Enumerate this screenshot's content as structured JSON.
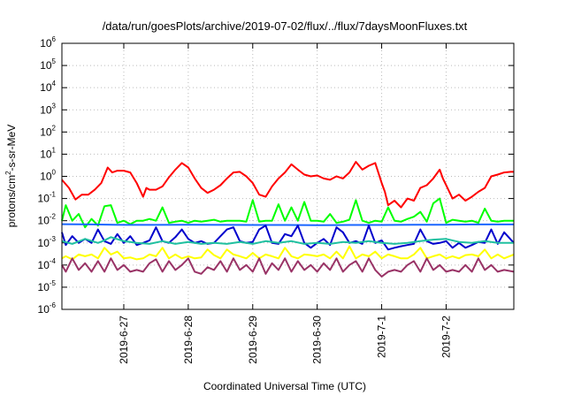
{
  "chart_data": {
    "type": "line",
    "title": "/data/run/goesPlots/archive/2019-07-02/flux/../flux/7daysMoonFluxes.txt",
    "xlabel": "Coordinated Universal Time (UTC)",
    "ylabel": "protons/cm²-s-sr-MeV",
    "ylabel_parts": {
      "main": "protons/cm",
      "sup": "2",
      "rest": "-s-sr-MeV"
    },
    "yscale": "log",
    "ylim": [
      -6,
      6
    ],
    "y_ticks": [
      {
        "base": "10",
        "exp": "-6"
      },
      {
        "base": "10",
        "exp": "-5"
      },
      {
        "base": "10",
        "exp": "-4"
      },
      {
        "base": "10",
        "exp": "-3"
      },
      {
        "base": "10",
        "exp": "-2"
      },
      {
        "base": "10",
        "exp": "-1"
      },
      {
        "base": "10",
        "exp": "0"
      },
      {
        "base": "10",
        "exp": "1"
      },
      {
        "base": "10",
        "exp": "2"
      },
      {
        "base": "10",
        "exp": "3"
      },
      {
        "base": "10",
        "exp": "4"
      },
      {
        "base": "10",
        "exp": "5"
      },
      {
        "base": "10",
        "exp": "6"
      }
    ],
    "x_ticks": [
      "2019-6-27",
      "2019-6-28",
      "2019-6-29",
      "2019-6-30",
      "2019-7-1",
      "2019-7-2"
    ],
    "x_tick_days": [
      1,
      2,
      3,
      4,
      5,
      6
    ],
    "xlim_days": [
      0.04,
      7.05
    ],
    "grid": true,
    "legend": "none",
    "series": [
      {
        "color": "#ff0000",
        "x": [
          0.04,
          0.15,
          0.25,
          0.35,
          0.45,
          0.55,
          0.65,
          0.75,
          0.82,
          0.9,
          1.0,
          1.1,
          1.2,
          1.3,
          1.35,
          1.4,
          1.5,
          1.6,
          1.7,
          1.8,
          1.9,
          2.0,
          2.1,
          2.2,
          2.3,
          2.4,
          2.5,
          2.6,
          2.7,
          2.8,
          2.9,
          3.0,
          3.1,
          3.2,
          3.3,
          3.4,
          3.5,
          3.6,
          3.7,
          3.8,
          3.9,
          4.0,
          4.1,
          4.2,
          4.3,
          4.4,
          4.5,
          4.6,
          4.7,
          4.8,
          4.9,
          5.0,
          5.05,
          5.1,
          5.2,
          5.3,
          5.4,
          5.5,
          5.6,
          5.7,
          5.8,
          5.9,
          5.95,
          6.0,
          6.1,
          6.2,
          6.3,
          6.4,
          6.5,
          6.6,
          6.7,
          6.8,
          6.9,
          7.0,
          7.05
        ],
        "y": [
          0.7,
          0.3,
          0.09,
          0.15,
          0.15,
          0.25,
          0.5,
          2.5,
          1.5,
          1.8,
          1.8,
          1.5,
          0.5,
          0.12,
          0.3,
          0.25,
          0.25,
          0.35,
          0.9,
          2.0,
          4.0,
          2.5,
          0.8,
          0.3,
          0.18,
          0.25,
          0.4,
          0.8,
          1.5,
          1.6,
          1.0,
          0.5,
          0.15,
          0.12,
          0.35,
          0.8,
          1.5,
          3.5,
          2.0,
          1.2,
          1.0,
          1.1,
          0.8,
          0.7,
          1.0,
          0.8,
          1.5,
          4.5,
          2.0,
          3.0,
          4.0,
          0.5,
          0.2,
          0.05,
          0.08,
          0.04,
          0.1,
          0.08,
          0.3,
          0.4,
          0.8,
          2.0,
          0.8,
          0.4,
          0.1,
          0.15,
          0.08,
          0.12,
          0.2,
          0.3,
          1.0,
          1.2,
          1.5,
          1.6,
          1.6
        ]
      },
      {
        "color": "#00ff00",
        "x": [
          0.04,
          0.1,
          0.2,
          0.3,
          0.4,
          0.5,
          0.6,
          0.7,
          0.8,
          0.9,
          1.0,
          1.1,
          1.2,
          1.3,
          1.4,
          1.5,
          1.6,
          1.7,
          1.8,
          1.9,
          2.0,
          2.1,
          2.2,
          2.3,
          2.4,
          2.5,
          2.6,
          2.7,
          2.8,
          2.9,
          3.0,
          3.1,
          3.2,
          3.3,
          3.4,
          3.5,
          3.6,
          3.7,
          3.8,
          3.9,
          4.0,
          4.1,
          4.2,
          4.3,
          4.4,
          4.5,
          4.6,
          4.7,
          4.8,
          4.9,
          5.0,
          5.1,
          5.2,
          5.3,
          5.4,
          5.5,
          5.6,
          5.7,
          5.8,
          5.9,
          6.0,
          6.1,
          6.2,
          6.3,
          6.4,
          6.5,
          6.6,
          6.7,
          6.8,
          6.9,
          7.05
        ],
        "y": [
          0.01,
          0.05,
          0.01,
          0.02,
          0.005,
          0.012,
          0.006,
          0.045,
          0.05,
          0.008,
          0.01,
          0.007,
          0.01,
          0.01,
          0.012,
          0.01,
          0.04,
          0.008,
          0.009,
          0.01,
          0.008,
          0.01,
          0.009,
          0.01,
          0.011,
          0.009,
          0.01,
          0.01,
          0.01,
          0.009,
          0.085,
          0.009,
          0.01,
          0.01,
          0.055,
          0.01,
          0.04,
          0.01,
          0.07,
          0.01,
          0.01,
          0.009,
          0.02,
          0.008,
          0.009,
          0.011,
          0.085,
          0.01,
          0.008,
          0.01,
          0.009,
          0.04,
          0.01,
          0.009,
          0.012,
          0.015,
          0.025,
          0.009,
          0.06,
          0.1,
          0.008,
          0.011,
          0.01,
          0.009,
          0.01,
          0.008,
          0.035,
          0.01,
          0.009,
          0.01,
          0.01
        ]
      },
      {
        "color": "#1a66ff",
        "x": [
          0.04,
          0.5,
          1.0,
          1.5,
          2.0,
          2.5,
          3.0,
          3.5,
          4.0,
          4.5,
          5.0,
          5.5,
          6.0,
          6.5,
          7.05
        ],
        "y": [
          0.007,
          0.0068,
          0.0065,
          0.0065,
          0.0066,
          0.0065,
          0.0064,
          0.0064,
          0.0063,
          0.0064,
          0.0064,
          0.0066,
          0.0066,
          0.0068,
          0.0068
        ]
      },
      {
        "color": "#0000cc",
        "x": [
          0.04,
          0.1,
          0.2,
          0.3,
          0.4,
          0.5,
          0.6,
          0.7,
          0.8,
          0.9,
          1.0,
          1.1,
          1.2,
          1.3,
          1.4,
          1.5,
          1.6,
          1.7,
          1.8,
          1.9,
          2.0,
          2.1,
          2.2,
          2.3,
          2.4,
          2.5,
          2.6,
          2.7,
          2.8,
          2.9,
          3.0,
          3.1,
          3.2,
          3.3,
          3.4,
          3.5,
          3.6,
          3.7,
          3.8,
          3.9,
          4.0,
          4.1,
          4.2,
          4.3,
          4.4,
          4.5,
          4.6,
          4.7,
          4.8,
          4.9,
          5.0,
          5.1,
          5.2,
          5.3,
          5.4,
          5.5,
          5.6,
          5.7,
          5.8,
          5.9,
          6.0,
          6.1,
          6.2,
          6.3,
          6.4,
          6.5,
          6.6,
          6.7,
          6.8,
          6.9,
          7.05
        ],
        "y": [
          0.003,
          0.0008,
          0.002,
          0.001,
          0.0015,
          0.001,
          0.004,
          0.0012,
          0.0009,
          0.0025,
          0.001,
          0.002,
          0.0008,
          0.001,
          0.0013,
          0.005,
          0.0012,
          0.001,
          0.0018,
          0.004,
          0.0015,
          0.001,
          0.0012,
          0.0009,
          0.001,
          0.002,
          0.004,
          0.005,
          0.0012,
          0.001,
          0.0011,
          0.004,
          0.006,
          0.001,
          0.0009,
          0.0025,
          0.002,
          0.006,
          0.001,
          0.0006,
          0.001,
          0.0015,
          0.0008,
          0.005,
          0.003,
          0.001,
          0.0012,
          0.0009,
          0.006,
          0.001,
          0.0013,
          0.0005,
          0.0006,
          0.0007,
          0.0008,
          0.0009,
          0.004,
          0.0012,
          0.0009,
          0.001,
          0.0012,
          0.0006,
          0.001,
          0.0006,
          0.0008,
          0.0011,
          0.001,
          0.004,
          0.0009,
          0.003,
          0.001
        ]
      },
      {
        "color": "#20c0a0",
        "x": [
          0.04,
          0.2,
          0.4,
          0.6,
          0.7,
          0.8,
          1.0,
          1.2,
          1.4,
          1.6,
          1.8,
          2.0,
          2.2,
          2.4,
          2.6,
          2.8,
          3.0,
          3.2,
          3.4,
          3.6,
          3.8,
          4.0,
          4.2,
          4.4,
          4.6,
          4.8,
          5.0,
          5.2,
          5.4,
          5.6,
          5.8,
          6.0,
          6.2,
          6.4,
          6.6,
          6.8,
          7.05
        ],
        "y": [
          0.0012,
          0.0009,
          0.0015,
          0.001,
          0.0013,
          0.0018,
          0.0012,
          0.001,
          0.0009,
          0.0012,
          0.0009,
          0.0011,
          0.0009,
          0.001,
          0.0009,
          0.0011,
          0.0009,
          0.0012,
          0.001,
          0.0012,
          0.0009,
          0.001,
          0.0009,
          0.0011,
          0.001,
          0.0012,
          0.001,
          0.0009,
          0.001,
          0.0012,
          0.0014,
          0.0015,
          0.0011,
          0.001,
          0.0012,
          0.001,
          0.001
        ]
      },
      {
        "color": "#ffff00",
        "x": [
          0.04,
          0.1,
          0.2,
          0.3,
          0.4,
          0.5,
          0.6,
          0.7,
          0.8,
          0.9,
          1.0,
          1.1,
          1.2,
          1.3,
          1.4,
          1.5,
          1.6,
          1.7,
          1.8,
          1.9,
          2.0,
          2.1,
          2.2,
          2.3,
          2.4,
          2.5,
          2.6,
          2.7,
          2.8,
          2.9,
          3.0,
          3.1,
          3.2,
          3.3,
          3.4,
          3.5,
          3.6,
          3.7,
          3.8,
          3.9,
          4.0,
          4.1,
          4.2,
          4.3,
          4.4,
          4.5,
          4.6,
          4.7,
          4.8,
          4.9,
          5.0,
          5.1,
          5.2,
          5.3,
          5.4,
          5.5,
          5.6,
          5.7,
          5.8,
          5.9,
          6.0,
          6.1,
          6.2,
          6.3,
          6.4,
          6.5,
          6.6,
          6.7,
          6.8,
          6.9,
          7.05
        ],
        "y": [
          0.0002,
          0.00025,
          0.00018,
          0.0003,
          0.00025,
          0.0003,
          0.0002,
          0.0006,
          0.0003,
          0.0004,
          0.0002,
          0.00022,
          0.00018,
          0.0002,
          0.0003,
          0.00025,
          0.0006,
          0.0002,
          0.0003,
          0.0002,
          0.00025,
          0.0002,
          0.00022,
          0.0005,
          0.00028,
          0.0002,
          0.0005,
          0.0003,
          0.00025,
          0.0002,
          0.00035,
          0.0002,
          0.0003,
          0.00025,
          0.0002,
          0.0006,
          0.00025,
          0.0002,
          0.0003,
          0.00028,
          0.00025,
          0.0003,
          0.0002,
          0.0004,
          0.0002,
          0.0007,
          0.0002,
          0.0003,
          0.00025,
          0.0004,
          0.0002,
          0.0003,
          0.00025,
          0.0002,
          0.0002,
          0.0003,
          0.0006,
          0.0002,
          0.00025,
          0.0003,
          0.0002,
          0.00025,
          0.0002,
          0.00028,
          0.0003,
          0.00025,
          0.0005,
          0.0002,
          0.0003,
          0.0002,
          0.0003
        ]
      },
      {
        "color": "#993366",
        "x": [
          0.04,
          0.1,
          0.2,
          0.3,
          0.4,
          0.5,
          0.6,
          0.7,
          0.8,
          0.9,
          1.0,
          1.1,
          1.2,
          1.3,
          1.4,
          1.5,
          1.6,
          1.7,
          1.8,
          1.9,
          2.0,
          2.1,
          2.2,
          2.3,
          2.4,
          2.5,
          2.6,
          2.7,
          2.8,
          2.9,
          3.0,
          3.1,
          3.2,
          3.3,
          3.4,
          3.5,
          3.6,
          3.7,
          3.8,
          3.9,
          4.0,
          4.1,
          4.2,
          4.3,
          4.4,
          4.5,
          4.6,
          4.7,
          4.8,
          4.9,
          5.0,
          5.1,
          5.2,
          5.3,
          5.4,
          5.5,
          5.6,
          5.7,
          5.8,
          5.9,
          6.0,
          6.1,
          6.2,
          6.3,
          6.4,
          6.5,
          6.6,
          6.7,
          6.8,
          6.9,
          7.05
        ],
        "y": [
          0.0001,
          5e-05,
          0.0002,
          6e-05,
          0.00012,
          5e-05,
          0.00015,
          5e-05,
          0.0002,
          6e-05,
          0.0001,
          5e-05,
          6e-05,
          5e-05,
          0.00012,
          0.00018,
          5e-05,
          0.00015,
          6e-05,
          0.0001,
          0.0002,
          5e-05,
          4e-05,
          8e-05,
          6e-05,
          0.00015,
          5e-05,
          0.0002,
          6e-05,
          0.0001,
          5e-05,
          0.0002,
          4e-05,
          0.00012,
          6e-05,
          0.0002,
          5e-05,
          0.00015,
          6e-05,
          0.0001,
          5e-05,
          0.00012,
          6e-05,
          0.0002,
          5e-05,
          0.0001,
          0.00015,
          5e-05,
          0.0002,
          6e-05,
          3e-05,
          5e-05,
          6e-05,
          5e-05,
          0.0001,
          0.00015,
          5e-05,
          0.0002,
          6e-05,
          0.0001,
          5e-05,
          6e-05,
          5e-05,
          0.0001,
          5e-05,
          0.0002,
          6e-05,
          0.0001,
          5e-05,
          6e-05,
          5e-05
        ]
      }
    ]
  }
}
